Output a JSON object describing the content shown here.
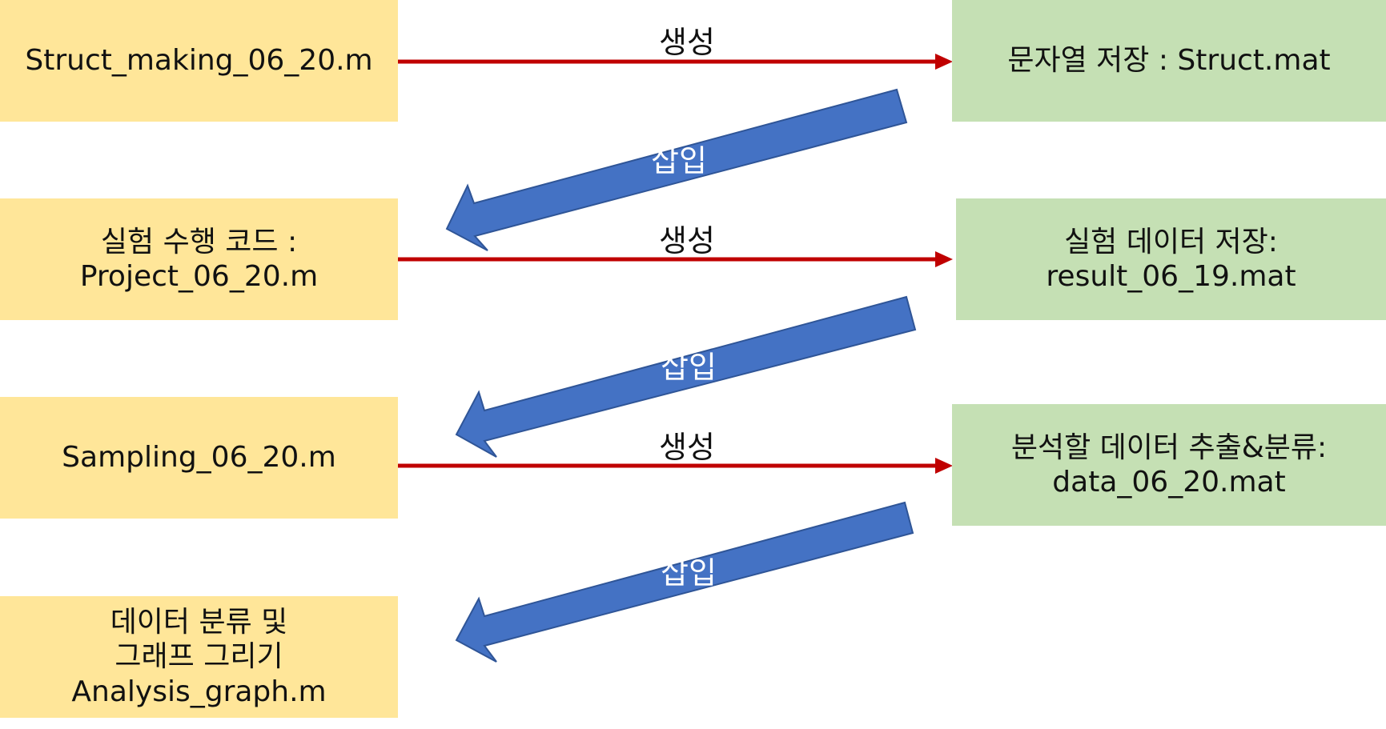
{
  "colors": {
    "process_box": "#ffe699",
    "data_box": "#c5e0b4",
    "generate_arrow": "#c00000",
    "insert_arrow": "#4472c4"
  },
  "left_boxes": [
    {
      "lines": [
        "Struct_making_06_20.m"
      ]
    },
    {
      "lines": [
        "실험 수행 코드 :",
        "Project_06_20.m"
      ]
    },
    {
      "lines": [
        "Sampling_06_20.m"
      ]
    },
    {
      "lines": [
        "데이터 분류 및",
        "그래프 그리기",
        "Analysis_graph.m"
      ]
    }
  ],
  "right_boxes": [
    {
      "lines": [
        "문자열 저장 : Struct.mat"
      ]
    },
    {
      "lines": [
        "실험 데이터 저장:",
        "result_06_19.mat"
      ]
    },
    {
      "lines": [
        "분석할 데이터 추출&분류:",
        "data_06_20.mat"
      ]
    }
  ],
  "generate_label": "생성",
  "insert_label": "삽입"
}
